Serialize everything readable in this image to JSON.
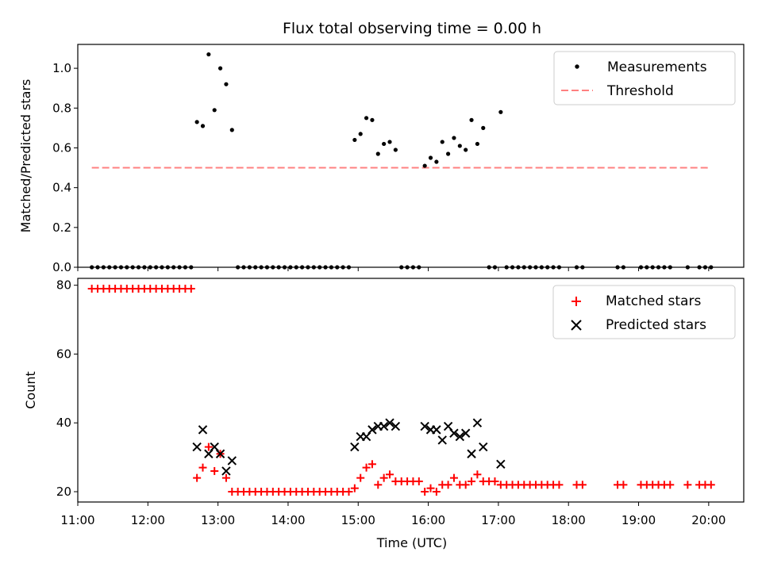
{
  "chart_data": [
    {
      "type": "scatter",
      "title": "Flux total observing time = 0.00 h",
      "xlabel": "",
      "ylabel": "Matched/Predicted stars",
      "xlim": [
        "11:00",
        "20:30"
      ],
      "ylim": [
        0,
        1.12
      ],
      "yticks": [
        0.0,
        0.2,
        0.4,
        0.6,
        0.8,
        1.0
      ],
      "ytick_labels": [
        "0.0",
        "0.2",
        "0.4",
        "0.6",
        "0.8",
        "1.0"
      ],
      "legend_position": "top-right",
      "threshold": {
        "name": "Threshold",
        "value": 0.5,
        "x_start": "11:12",
        "x_end": "20:00",
        "color": "#ff8080",
        "style": "dashed"
      },
      "series": [
        {
          "name": "Measurements",
          "color": "#000000",
          "marker": "dot",
          "points": [
            [
              "11:12",
              0
            ],
            [
              "11:17",
              0
            ],
            [
              "11:22",
              0
            ],
            [
              "11:27",
              0
            ],
            [
              "11:32",
              0
            ],
            [
              "11:37",
              0
            ],
            [
              "11:42",
              0
            ],
            [
              "11:47",
              0
            ],
            [
              "11:52",
              0
            ],
            [
              "11:57",
              0
            ],
            [
              "12:02",
              0
            ],
            [
              "12:07",
              0
            ],
            [
              "12:12",
              0
            ],
            [
              "12:17",
              0
            ],
            [
              "12:22",
              0
            ],
            [
              "12:27",
              0
            ],
            [
              "12:32",
              0
            ],
            [
              "12:37",
              0
            ],
            [
              "12:42",
              0.73
            ],
            [
              "12:47",
              0.71
            ],
            [
              "12:52",
              1.07
            ],
            [
              "12:57",
              0.79
            ],
            [
              "13:02",
              1.0
            ],
            [
              "13:07",
              0.92
            ],
            [
              "13:12",
              0.69
            ],
            [
              "13:17",
              0
            ],
            [
              "13:22",
              0
            ],
            [
              "13:27",
              0
            ],
            [
              "13:32",
              0
            ],
            [
              "13:37",
              0
            ],
            [
              "13:42",
              0
            ],
            [
              "13:47",
              0
            ],
            [
              "13:52",
              0
            ],
            [
              "13:57",
              0
            ],
            [
              "14:02",
              0
            ],
            [
              "14:07",
              0
            ],
            [
              "14:12",
              0
            ],
            [
              "14:17",
              0
            ],
            [
              "14:22",
              0
            ],
            [
              "14:27",
              0
            ],
            [
              "14:32",
              0
            ],
            [
              "14:37",
              0
            ],
            [
              "14:42",
              0
            ],
            [
              "14:47",
              0
            ],
            [
              "14:52",
              0
            ],
            [
              "14:57",
              0.64
            ],
            [
              "15:02",
              0.67
            ],
            [
              "15:07",
              0.75
            ],
            [
              "15:12",
              0.74
            ],
            [
              "15:17",
              0.57
            ],
            [
              "15:22",
              0.62
            ],
            [
              "15:27",
              0.63
            ],
            [
              "15:32",
              0.59
            ],
            [
              "15:37",
              0
            ],
            [
              "15:42",
              0
            ],
            [
              "15:47",
              0
            ],
            [
              "15:52",
              0
            ],
            [
              "15:57",
              0.51
            ],
            [
              "16:02",
              0.55
            ],
            [
              "16:07",
              0.53
            ],
            [
              "16:12",
              0.63
            ],
            [
              "16:17",
              0.57
            ],
            [
              "16:22",
              0.65
            ],
            [
              "16:27",
              0.61
            ],
            [
              "16:32",
              0.59
            ],
            [
              "16:37",
              0.74
            ],
            [
              "16:42",
              0.62
            ],
            [
              "16:47",
              0.7
            ],
            [
              "16:52",
              0
            ],
            [
              "16:57",
              0
            ],
            [
              "17:02",
              0.78
            ],
            [
              "17:07",
              0
            ],
            [
              "17:12",
              0
            ],
            [
              "17:17",
              0
            ],
            [
              "17:22",
              0
            ],
            [
              "17:27",
              0
            ],
            [
              "17:32",
              0
            ],
            [
              "17:37",
              0
            ],
            [
              "17:42",
              0
            ],
            [
              "17:47",
              0
            ],
            [
              "17:52",
              0
            ],
            [
              "18:07",
              0
            ],
            [
              "18:12",
              0
            ],
            [
              "18:42",
              0
            ],
            [
              "18:47",
              0
            ],
            [
              "19:02",
              0
            ],
            [
              "19:07",
              0
            ],
            [
              "19:12",
              0
            ],
            [
              "19:17",
              0
            ],
            [
              "19:22",
              0
            ],
            [
              "19:27",
              0
            ],
            [
              "19:42",
              0
            ],
            [
              "19:52",
              0
            ],
            [
              "19:57",
              0
            ],
            [
              "20:02",
              0
            ]
          ]
        }
      ]
    },
    {
      "type": "scatter",
      "title": "",
      "xlabel": "Time (UTC)",
      "ylabel": "Count",
      "xlim": [
        "11:00",
        "20:30"
      ],
      "ylim": [
        17,
        82
      ],
      "xticks": [
        "11:00",
        "12:00",
        "13:00",
        "14:00",
        "15:00",
        "16:00",
        "17:00",
        "18:00",
        "19:00",
        "20:00"
      ],
      "yticks": [
        20,
        40,
        60,
        80
      ],
      "ytick_labels": [
        "20",
        "40",
        "60",
        "80"
      ],
      "legend_position": "top-right",
      "series": [
        {
          "name": "Matched stars",
          "color": "#ff0000",
          "marker": "plus",
          "points": [
            [
              "11:12",
              79
            ],
            [
              "11:17",
              79
            ],
            [
              "11:22",
              79
            ],
            [
              "11:27",
              79
            ],
            [
              "11:32",
              79
            ],
            [
              "11:37",
              79
            ],
            [
              "11:42",
              79
            ],
            [
              "11:47",
              79
            ],
            [
              "11:52",
              79
            ],
            [
              "11:57",
              79
            ],
            [
              "12:02",
              79
            ],
            [
              "12:07",
              79
            ],
            [
              "12:12",
              79
            ],
            [
              "12:17",
              79
            ],
            [
              "12:22",
              79
            ],
            [
              "12:27",
              79
            ],
            [
              "12:32",
              79
            ],
            [
              "12:37",
              79
            ],
            [
              "12:42",
              24
            ],
            [
              "12:47",
              27
            ],
            [
              "12:52",
              33
            ],
            [
              "12:57",
              26
            ],
            [
              "13:02",
              31
            ],
            [
              "13:07",
              24
            ],
            [
              "13:12",
              20
            ],
            [
              "13:17",
              20
            ],
            [
              "13:22",
              20
            ],
            [
              "13:27",
              20
            ],
            [
              "13:32",
              20
            ],
            [
              "13:37",
              20
            ],
            [
              "13:42",
              20
            ],
            [
              "13:47",
              20
            ],
            [
              "13:52",
              20
            ],
            [
              "13:57",
              20
            ],
            [
              "14:02",
              20
            ],
            [
              "14:07",
              20
            ],
            [
              "14:12",
              20
            ],
            [
              "14:17",
              20
            ],
            [
              "14:22",
              20
            ],
            [
              "14:27",
              20
            ],
            [
              "14:32",
              20
            ],
            [
              "14:37",
              20
            ],
            [
              "14:42",
              20
            ],
            [
              "14:47",
              20
            ],
            [
              "14:52",
              20
            ],
            [
              "14:57",
              21
            ],
            [
              "15:02",
              24
            ],
            [
              "15:07",
              27
            ],
            [
              "15:12",
              28
            ],
            [
              "15:17",
              22
            ],
            [
              "15:22",
              24
            ],
            [
              "15:27",
              25
            ],
            [
              "15:32",
              23
            ],
            [
              "15:37",
              23
            ],
            [
              "15:42",
              23
            ],
            [
              "15:47",
              23
            ],
            [
              "15:52",
              23
            ],
            [
              "15:57",
              20
            ],
            [
              "16:02",
              21
            ],
            [
              "16:07",
              20
            ],
            [
              "16:12",
              22
            ],
            [
              "16:17",
              22
            ],
            [
              "16:22",
              24
            ],
            [
              "16:27",
              22
            ],
            [
              "16:32",
              22
            ],
            [
              "16:37",
              23
            ],
            [
              "16:42",
              25
            ],
            [
              "16:47",
              23
            ],
            [
              "16:52",
              23
            ],
            [
              "16:57",
              23
            ],
            [
              "17:02",
              22
            ],
            [
              "17:07",
              22
            ],
            [
              "17:12",
              22
            ],
            [
              "17:17",
              22
            ],
            [
              "17:22",
              22
            ],
            [
              "17:27",
              22
            ],
            [
              "17:32",
              22
            ],
            [
              "17:37",
              22
            ],
            [
              "17:42",
              22
            ],
            [
              "17:47",
              22
            ],
            [
              "17:52",
              22
            ],
            [
              "18:07",
              22
            ],
            [
              "18:12",
              22
            ],
            [
              "18:42",
              22
            ],
            [
              "18:47",
              22
            ],
            [
              "19:02",
              22
            ],
            [
              "19:07",
              22
            ],
            [
              "19:12",
              22
            ],
            [
              "19:17",
              22
            ],
            [
              "19:22",
              22
            ],
            [
              "19:27",
              22
            ],
            [
              "19:42",
              22
            ],
            [
              "19:52",
              22
            ],
            [
              "19:57",
              22
            ],
            [
              "20:02",
              22
            ]
          ]
        },
        {
          "name": "Predicted stars",
          "color": "#000000",
          "marker": "x",
          "points": [
            [
              "12:42",
              33
            ],
            [
              "12:47",
              38
            ],
            [
              "12:52",
              31
            ],
            [
              "12:57",
              33
            ],
            [
              "13:02",
              31
            ],
            [
              "13:07",
              26
            ],
            [
              "13:12",
              29
            ],
            [
              "14:57",
              33
            ],
            [
              "15:02",
              36
            ],
            [
              "15:07",
              36
            ],
            [
              "15:12",
              38
            ],
            [
              "15:17",
              39
            ],
            [
              "15:22",
              39
            ],
            [
              "15:27",
              40
            ],
            [
              "15:32",
              39
            ],
            [
              "15:57",
              39
            ],
            [
              "16:02",
              38
            ],
            [
              "16:07",
              38
            ],
            [
              "16:12",
              35
            ],
            [
              "16:17",
              39
            ],
            [
              "16:22",
              37
            ],
            [
              "16:27",
              36
            ],
            [
              "16:32",
              37
            ],
            [
              "16:37",
              31
            ],
            [
              "16:42",
              40
            ],
            [
              "16:47",
              33
            ],
            [
              "17:02",
              28
            ]
          ]
        }
      ]
    }
  ]
}
